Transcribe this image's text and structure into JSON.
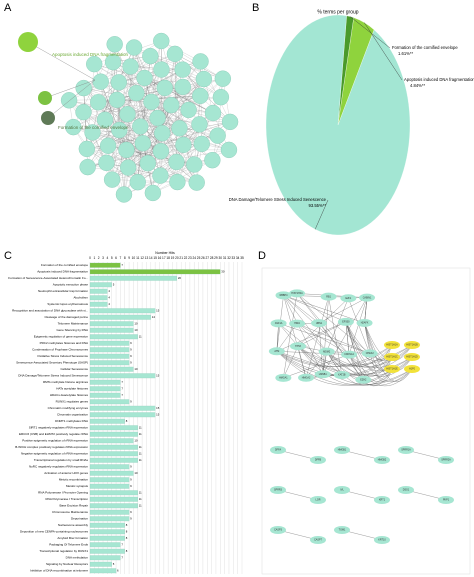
{
  "chart_data": [
    {
      "type": "network",
      "panel": "A",
      "labels": [
        "Apoptosis induced DNA fragmentation",
        "Formation of the cornified envelope"
      ]
    },
    {
      "type": "pie",
      "panel": "B",
      "title": "% terms per group",
      "categories": [
        "Formation of the cornified envelope",
        "Apoptosis induced DNA fragmentation",
        "DNA Damage/Telomere Stress Induced Senescence"
      ],
      "values": [
        1.61,
        4.84,
        93.55
      ],
      "value_labels": [
        "1.61%**",
        "4.84%**",
        "93.55%**"
      ],
      "colors": [
        "#4a9a2a",
        "#8fd33d",
        "#a3e6d3"
      ]
    },
    {
      "type": "bar",
      "panel": "C",
      "title": "Number Hits",
      "categories": [
        "Formation of the cornified envelope",
        "Apoptosis induced DNA fragmentation",
        "Formation of Senescence-Associated Heterochromatin Fo...",
        "Apoptotic execution phase",
        "Neutrophil extracellular trap formation",
        "Alcoholism",
        "Systemic lupus erythematosus",
        "Recognition and association of DNA glycosylase with si...",
        "Cleavage of the damaged purine",
        "Telomere Maintenance",
        "Gene Silencing by RNA",
        "Epigenetic regulation of gene expression",
        "PRC2 methylates histones and DNA",
        "Condensation of Prophase Chromosomes",
        "Oxidative Stress Induced Senescence",
        "Senescence-Associated Secretory Phenotype (SASP)",
        "Cellular Senescence",
        "DNA Damage/Telomere Stress Induced Senescence",
        "RMTs methylate histone arginines",
        "HATs acetylate histones",
        "HDACs deacetylate histones",
        "RUNX1 regulates genes",
        "Chromatin modifying enzymes",
        "Chromatin organization",
        "DNMT1 methylates DNA",
        "SIRT1 negatively regulates rRNA expression",
        "ERCC6 (CSB) and EHMT2 positively regulate rRNA",
        "Positive epigenetic regulation of rRNA expression",
        "B-WICH complex positively regulates rRNA expression",
        "Negative epigenetic regulation of rRNA expression",
        "Transcriptional regulation by small RNAs",
        "NoRC negatively regulates rRNA expression",
        "Activation of anterior HOX genes",
        "Meiotic recombination",
        "Meiotic synapsis",
        "RNA Polymerase I Promoter Opening",
        "RNA Polymerase I Transcription",
        "Base Excision Repair",
        "Chromosome Maintenance",
        "Depurination",
        "Nucleosome assembly",
        "Deposition of new CENPA-containing nucleosomes",
        "Amyloid fiber formation",
        "Packaging Of Telomere Ends",
        "Transcriptional regulation by RUNX1",
        "DNA methylation",
        "Signaling by Nuclear Receptors",
        "Inhibition of DNA recombination at telomere"
      ],
      "values": [
        7,
        30,
        20,
        5,
        4,
        4,
        4,
        15,
        14,
        10,
        10,
        11,
        9,
        9,
        9,
        9,
        10,
        15,
        7,
        7,
        7,
        9,
        15,
        15,
        8,
        11,
        11,
        10,
        11,
        11,
        11,
        9,
        10,
        9,
        9,
        11,
        11,
        11,
        9,
        9,
        8,
        8,
        8,
        7,
        8,
        7,
        5,
        6
      ],
      "colors": [
        "#7cc242",
        "#7cc242",
        "#a6e6d2",
        "#a6e6d2",
        "#a6e6d2",
        "#a6e6d2",
        "#a6e6d2",
        "#a6e6d2",
        "#a6e6d2",
        "#a6e6d2",
        "#a6e6d2",
        "#a6e6d2",
        "#a6e6d2",
        "#a6e6d2",
        "#a6e6d2",
        "#a6e6d2",
        "#a6e6d2",
        "#a6e6d2",
        "#a6e6d2",
        "#a6e6d2",
        "#a6e6d2",
        "#a6e6d2",
        "#a6e6d2",
        "#a6e6d2",
        "#a6e6d2",
        "#a6e6d2",
        "#a6e6d2",
        "#a6e6d2",
        "#a6e6d2",
        "#a6e6d2",
        "#a6e6d2",
        "#a6e6d2",
        "#a6e6d2",
        "#a6e6d2",
        "#a6e6d2",
        "#a6e6d2",
        "#a6e6d2",
        "#a6e6d2",
        "#a6e6d2",
        "#a6e6d2",
        "#a6e6d2",
        "#a6e6d2",
        "#a6e6d2",
        "#a6e6d2",
        "#a6e6d2",
        "#a6e6d2",
        "#a6e6d2",
        "#a6e6d2"
      ],
      "xlim": [
        0,
        35
      ],
      "xticks": [
        0,
        1,
        2,
        3,
        4,
        5,
        6,
        7,
        8,
        9,
        10,
        11,
        12,
        13,
        14,
        15,
        16,
        17,
        18,
        19,
        20,
        21,
        22,
        23,
        24,
        25,
        26,
        27,
        28,
        29,
        30,
        31,
        32,
        33,
        34,
        35
      ],
      "grid": true
    },
    {
      "type": "network",
      "panel": "D",
      "labels": [
        "RBBP4",
        "HIST1H4A",
        "RB1",
        "E2F1",
        "CABIN1",
        "ASF1A",
        "HIRA",
        "UBN1",
        "EP300",
        "H2AFX",
        "ATM",
        "TP53",
        "MDM2",
        "CDKN1A",
        "CHEK2",
        "HMGA1",
        "HMGA2",
        "LMNB1",
        "KAT2B",
        "EZH2",
        "HIST1H1A",
        "HIST1H1B",
        "HIST1H1C",
        "HIST1H1D",
        "HIST1H1E",
        "H1F0",
        "DFFA",
        "DFFB",
        "HMGB1",
        "HMGB2",
        "SPRR1A",
        "SPRR2A",
        "SPRR3",
        "LOR",
        "IVL",
        "KRT1",
        "DSG1",
        "PKP1",
        "CASP3",
        "CASP7",
        "TGM1",
        "KRT10"
      ]
    }
  ]
}
